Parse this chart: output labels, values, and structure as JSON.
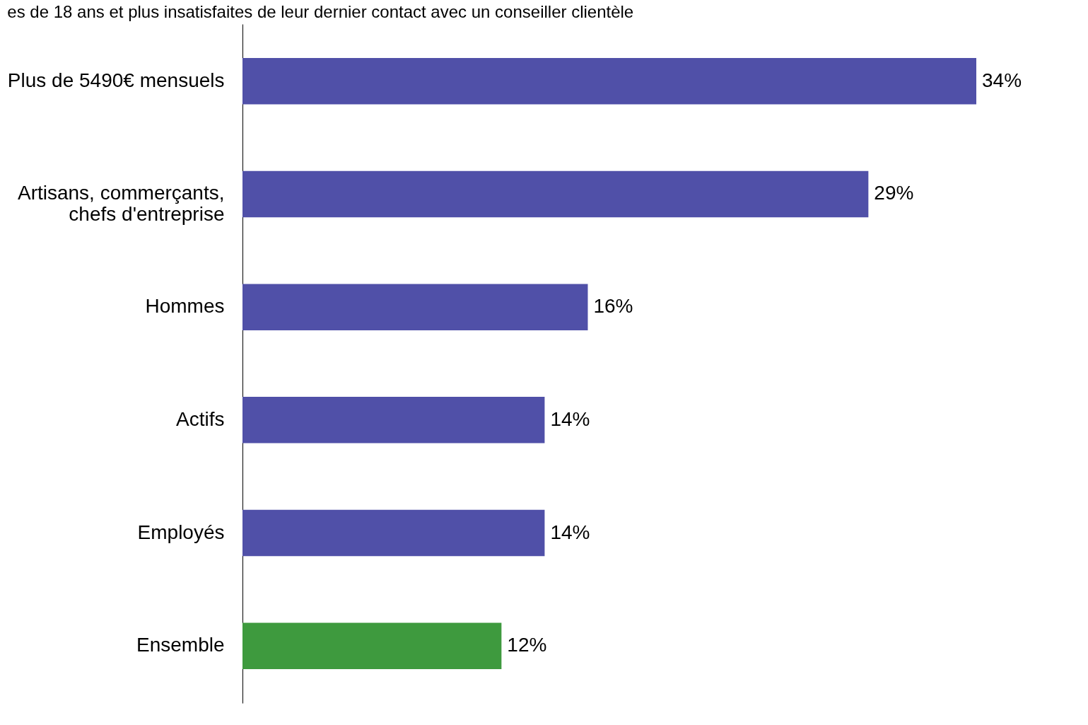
{
  "chart_data": {
    "type": "bar",
    "orientation": "horizontal",
    "title": "es de 18 ans et plus insatisfaites de leur dernier contact  avec un conseiller clientèle",
    "categories": [
      "Plus de 5490€ mensuels",
      "Artisans, commerçants, chefs d'entreprise",
      "Hommes",
      "Actifs",
      "Employés",
      "Ensemble"
    ],
    "values": [
      34,
      29,
      16,
      14,
      14,
      12
    ],
    "value_labels": [
      "34%",
      "29%",
      "16%",
      "14%",
      "14%",
      "12%"
    ],
    "colors": [
      "#5050a8",
      "#5050a8",
      "#5050a8",
      "#5050a8",
      "#5050a8",
      "#3e9a3e"
    ]
  }
}
